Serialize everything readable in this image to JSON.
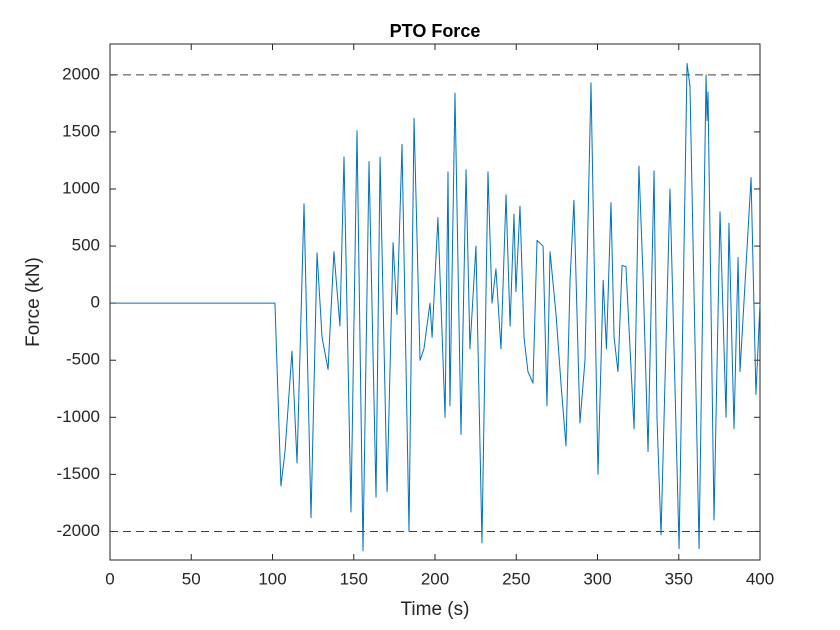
{
  "chart_data": {
    "type": "line",
    "title": "PTO Force",
    "x_label": "Time (s)",
    "y_label": "Force (kN)",
    "color": "#0072bd",
    "x": [
      0,
      101.5,
      105.2,
      107.7,
      112,
      115.1,
      119.4,
      123.7,
      127.4,
      130.5,
      134.2,
      137.8,
      141.5,
      144,
      148.3,
      152,
      155.7,
      159.4,
      163.7,
      166.2,
      170.5,
      174.2,
      176.6,
      179.7,
      184,
      187.1,
      190.8,
      193.2,
      196.9,
      198.2,
      201.8,
      206.2,
      208,
      209.2,
      212.3,
      216,
      219.1,
      221.5,
      225.2,
      228.9,
      232.6,
      235.1,
      237.5,
      240.6,
      243.7,
      246.2,
      248.6,
      249.8,
      252.3,
      254.8,
      257.2,
      260.3,
      262.8,
      266.5,
      268.9,
      270.8,
      274.5,
      277.5,
      280.6,
      283.1,
      285.5,
      289.2,
      292.3,
      296,
      300.3,
      303.5,
      305.5,
      308.3,
      310.2,
      312.6,
      315.1,
      317.5,
      322.5,
      325.5,
      328,
      331.1,
      334.8,
      336.6,
      339.1,
      344.6,
      350.2,
      355.1,
      356.9,
      362.5,
      366.8,
      367.4,
      368,
      371.7,
      375.4,
      379.1,
      380.9,
      384,
      386.5,
      387.7,
      394.5,
      397.5,
      400
    ],
    "values": [
      0,
      0,
      -1600,
      -1300,
      -420,
      -1400,
      870,
      -1880,
      440,
      -300,
      -580,
      450,
      -200,
      1280,
      -1830,
      1510,
      -2170,
      1240,
      -1700,
      1280,
      -1650,
      530,
      -100,
      1390,
      -2000,
      1620,
      -500,
      -400,
      0,
      -300,
      750,
      -1000,
      1150,
      -900,
      1840,
      -1150,
      1170,
      -400,
      500,
      -2100,
      1150,
      0,
      300,
      -400,
      950,
      -200,
      780,
      100,
      850,
      -300,
      -600,
      -700,
      550,
      500,
      -900,
      450,
      -100,
      -700,
      -1250,
      200,
      900,
      -1050,
      -500,
      1930,
      -1500,
      200,
      -400,
      880,
      -300,
      -600,
      330,
      320,
      -1100,
      1200,
      250,
      -1300,
      1160,
      -1000,
      -2030,
      1000,
      -2150,
      2100,
      1900,
      -2150,
      2000,
      1600,
      1850,
      -1900,
      800,
      -1000,
      700,
      -1100,
      400,
      -600,
      1100,
      -800,
      0
    ],
    "xlim": [
      0,
      400
    ],
    "xticks": [
      0,
      50,
      100,
      150,
      200,
      250,
      300,
      350,
      400
    ],
    "ylim": [
      -2250,
      2270
    ],
    "yticks": [
      -2000,
      -1500,
      -1000,
      -500,
      0,
      500,
      1000,
      1500,
      2000
    ],
    "reference_lines": [
      2000,
      -2000
    ]
  }
}
